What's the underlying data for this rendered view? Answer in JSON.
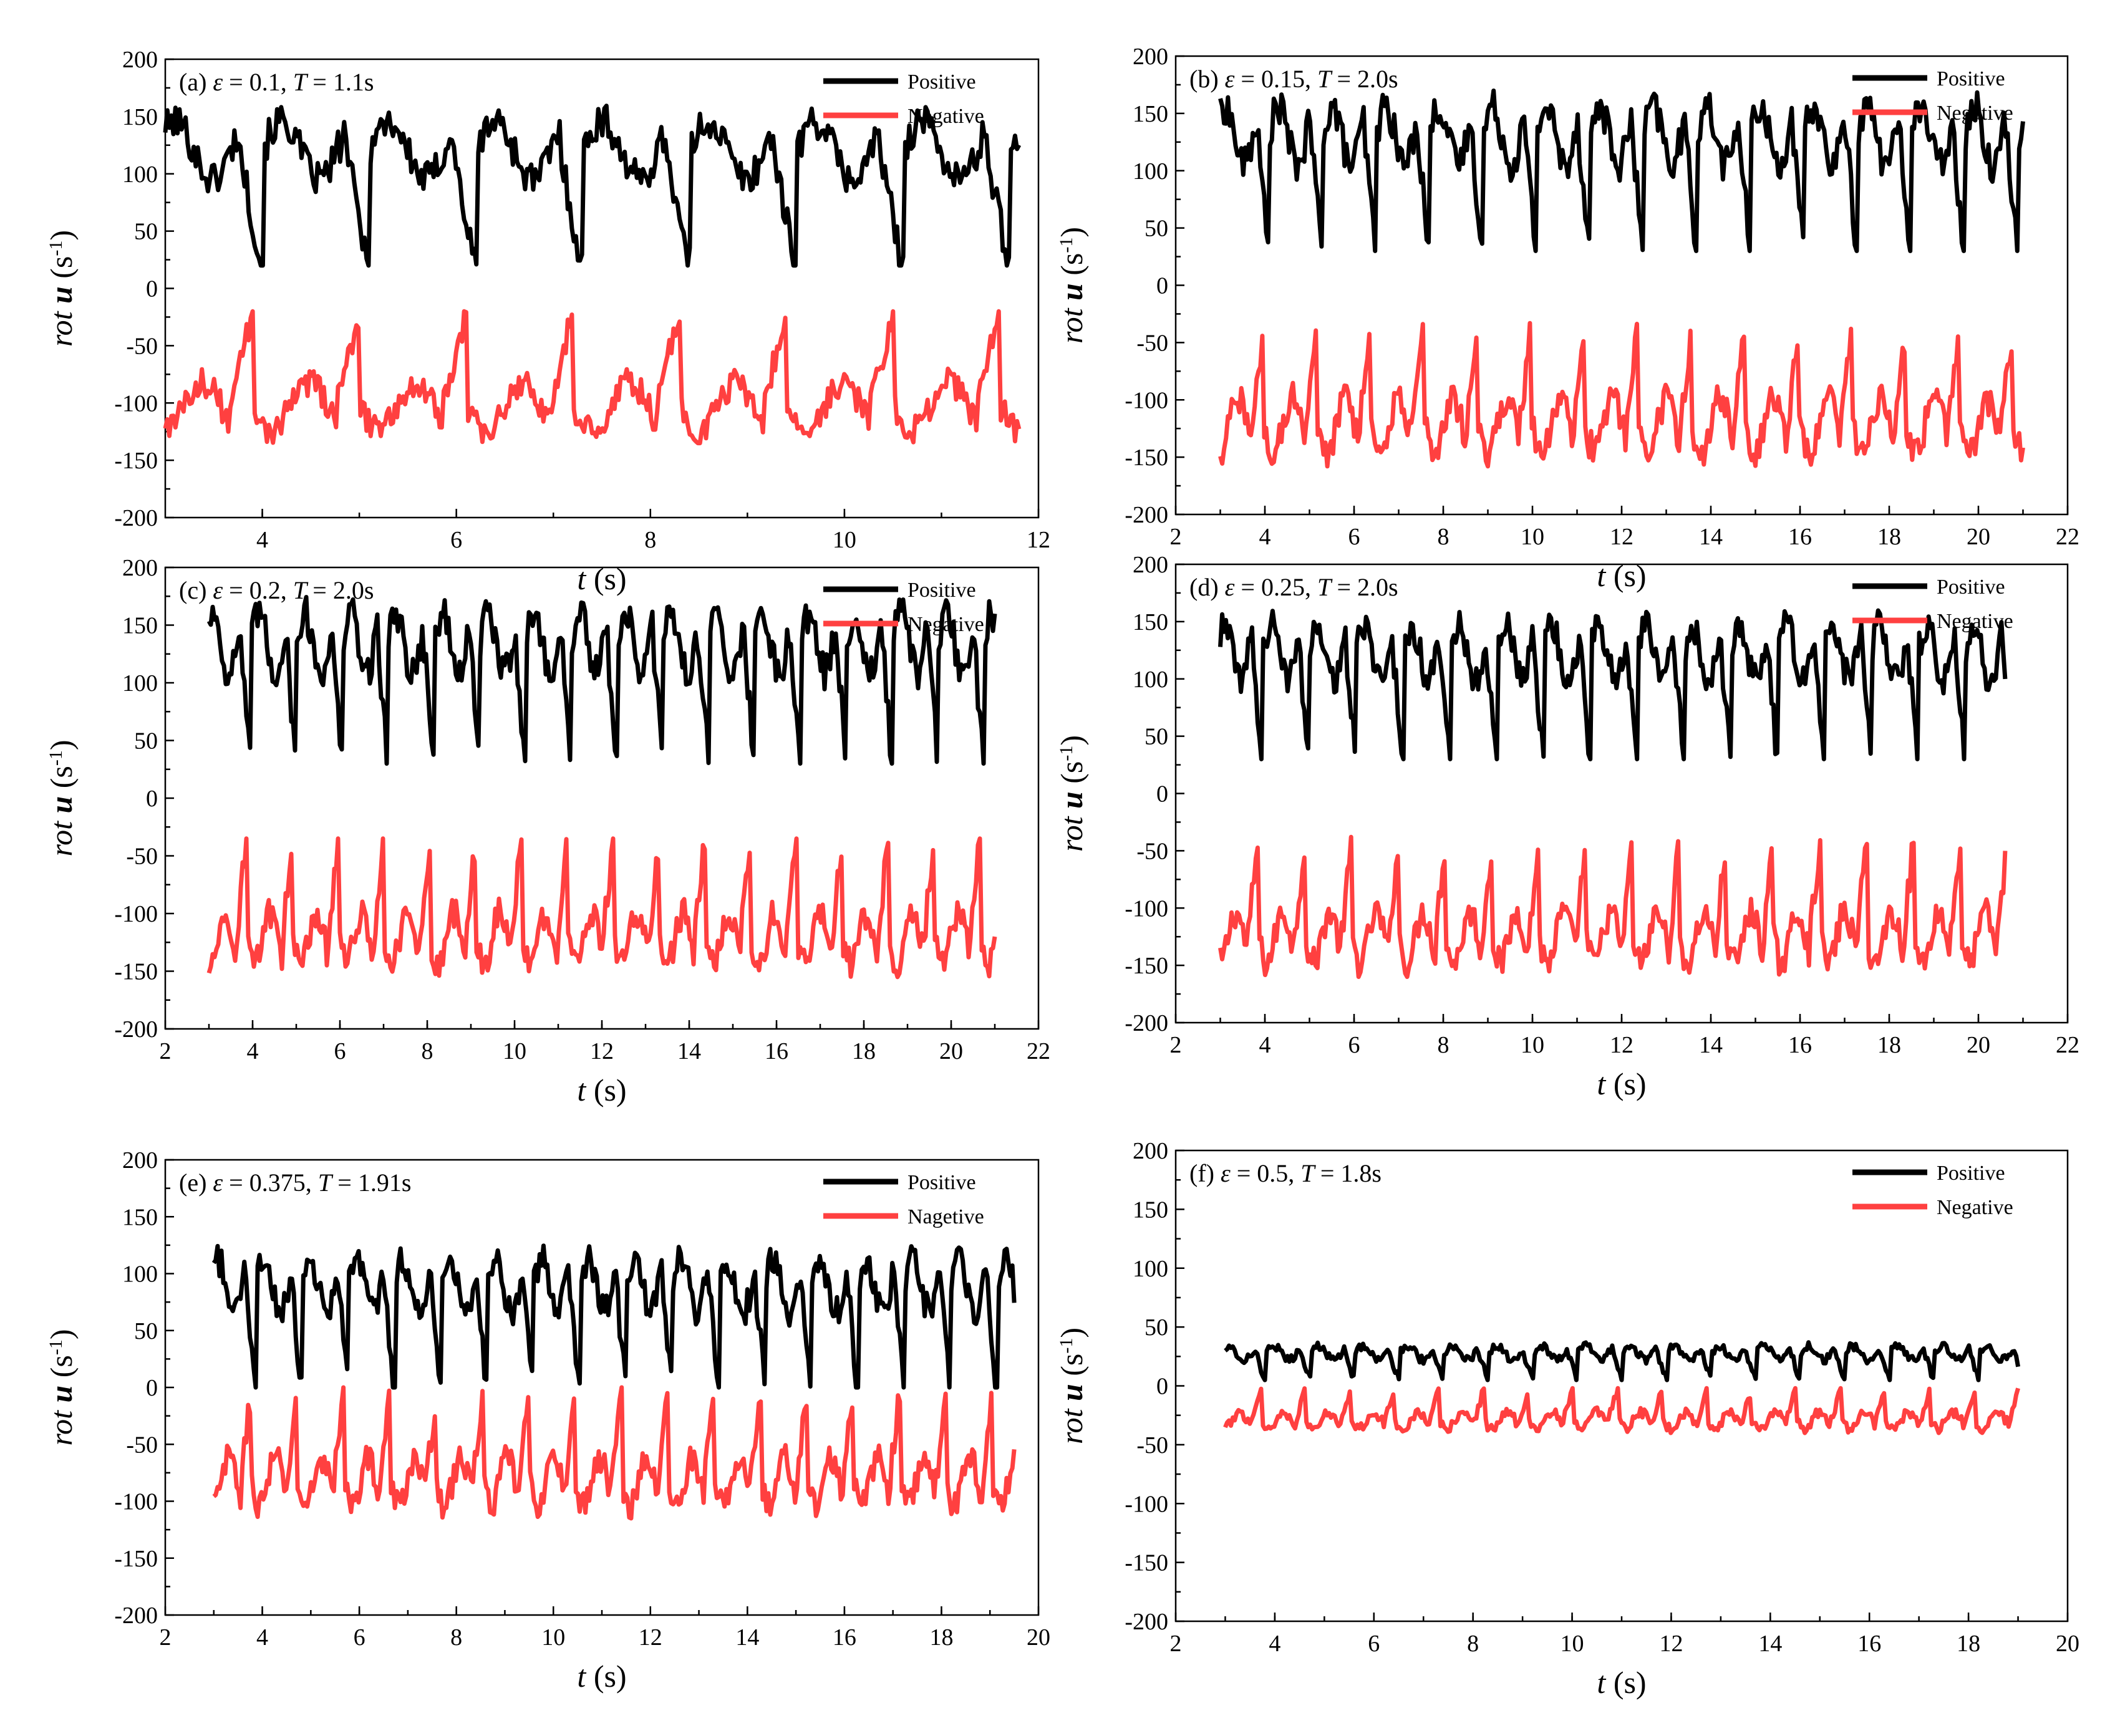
{
  "figure": {
    "ylabel": "rot",
    "ylabel_vec": "u",
    "ylabel_unit_open": "(s",
    "ylabel_unit_exp": "-1",
    "ylabel_unit_close": ")",
    "xlabel_var": "t",
    "xlabel_unit": "(s)",
    "colors": {
      "positive": "#000000",
      "negative": "#ff4040"
    }
  },
  "chart_data": [
    {
      "type": "line",
      "panel": "a",
      "label_prefix": "(a)",
      "label_eps": "ε",
      "label_eq1": "= 0.1,",
      "label_T": "T",
      "label_eq2": "= 1.1s",
      "xlim": [
        3,
        12
      ],
      "ylim": [
        -200,
        200
      ],
      "xticks": [
        4,
        6,
        8,
        10,
        12
      ],
      "yticks": [
        200,
        150,
        100,
        50,
        0,
        -50,
        -100,
        -150,
        -200
      ],
      "xlabel_shown": true,
      "x_start": 3.0,
      "x_end": 11.8,
      "period": 1.1,
      "positive_range": [
        20,
        160
      ],
      "negative_range": [
        -135,
        -20
      ],
      "series": [
        {
          "name": "Positive",
          "color": "#000000"
        },
        {
          "name": "Negative",
          "color": "#ff4040"
        }
      ]
    },
    {
      "type": "line",
      "panel": "b",
      "label_prefix": "(b)",
      "label_eps": "ε",
      "label_eq1": "= 0.15,",
      "label_T": "T",
      "label_eq2": "= 2.0s",
      "xlim": [
        2,
        22
      ],
      "ylim": [
        -200,
        200
      ],
      "xticks": [
        2,
        4,
        6,
        8,
        10,
        12,
        14,
        16,
        18,
        20,
        22
      ],
      "yticks": [
        200,
        150,
        100,
        50,
        0,
        -50,
        -100,
        -150,
        -200
      ],
      "xlabel_shown": true,
      "x_start": 3.0,
      "x_end": 21.0,
      "period": 1.2,
      "positive_range": [
        30,
        170
      ],
      "negative_range": [
        -158,
        -30
      ],
      "series": [
        {
          "name": "Positive",
          "color": "#000000"
        },
        {
          "name": "Negative",
          "color": "#ff4040"
        }
      ]
    },
    {
      "type": "line",
      "panel": "c",
      "label_prefix": "(c)",
      "label_eps": "ε",
      "label_eq1": "= 0.2,",
      "label_T": "T",
      "label_eq2": "= 2.0s",
      "xlim": [
        2,
        22
      ],
      "ylim": [
        -200,
        200
      ],
      "xticks": [
        2,
        4,
        6,
        8,
        10,
        12,
        14,
        16,
        18,
        20,
        22
      ],
      "yticks": [
        200,
        150,
        100,
        50,
        0,
        -50,
        -100,
        -150,
        -200
      ],
      "xlabel_shown": true,
      "x_start": 3.0,
      "x_end": 21.0,
      "period": 1.05,
      "positive_range": [
        30,
        175
      ],
      "negative_range": [
        -155,
        -35
      ],
      "series": [
        {
          "name": "Positive",
          "color": "#000000"
        },
        {
          "name": "Negative",
          "color": "#ff4040"
        }
      ]
    },
    {
      "type": "line",
      "panel": "d",
      "label_prefix": "(d)",
      "label_eps": "ε",
      "label_eq1": "= 0.25,",
      "label_T": "T",
      "label_eq2": "= 2.0s",
      "xlim": [
        2,
        22
      ],
      "ylim": [
        -200,
        200
      ],
      "xticks": [
        2,
        4,
        6,
        8,
        10,
        12,
        14,
        16,
        18,
        20,
        22
      ],
      "yticks": [
        200,
        150,
        100,
        50,
        0,
        -50,
        -100,
        -150,
        -200
      ],
      "xlabel_shown": true,
      "x_start": 3.0,
      "x_end": 20.6,
      "period": 1.05,
      "positive_range": [
        30,
        160
      ],
      "negative_range": [
        -160,
        -38
      ],
      "series": [
        {
          "name": "Positive",
          "color": "#000000"
        },
        {
          "name": "Negative",
          "color": "#ff4040"
        }
      ]
    },
    {
      "type": "line",
      "panel": "e",
      "label_prefix": "(e)",
      "label_eps": "ε",
      "label_eq1": "= 0.375,",
      "label_T": "T",
      "label_eq2": "= 1.91s",
      "xlim": [
        2,
        20
      ],
      "ylim": [
        -200,
        200
      ],
      "xticks": [
        2,
        4,
        6,
        8,
        10,
        12,
        14,
        16,
        18,
        20
      ],
      "yticks": [
        200,
        150,
        100,
        50,
        0,
        -50,
        -100,
        -150,
        -200
      ],
      "xlabel_shown": true,
      "x_start": 3.0,
      "x_end": 19.5,
      "period": 0.955,
      "positive_range": [
        0,
        125
      ],
      "negative_range": [
        -115,
        0
      ],
      "series": [
        {
          "name": "Positive",
          "color": "#000000"
        },
        {
          "name": "Nagetive",
          "color": "#ff4040"
        }
      ]
    },
    {
      "type": "line",
      "panel": "f",
      "label_prefix": "(f)",
      "label_eps": "ε",
      "label_eq1": "= 0.5,",
      "label_T": "T",
      "label_eq2": "= 1.8s",
      "xlim": [
        2,
        20
      ],
      "ylim": [
        -200,
        200
      ],
      "xticks": [
        2,
        4,
        6,
        8,
        10,
        12,
        14,
        16,
        18,
        20
      ],
      "yticks": [
        200,
        150,
        100,
        50,
        0,
        -50,
        -100,
        -150,
        -200
      ],
      "xlabel_shown": true,
      "x_start": 3.0,
      "x_end": 19.0,
      "period": 0.9,
      "positive_range": [
        5,
        37
      ],
      "negative_range": [
        -40,
        -2
      ],
      "series": [
        {
          "name": "Positive",
          "color": "#000000"
        },
        {
          "name": "Negative",
          "color": "#ff4040"
        }
      ]
    }
  ]
}
